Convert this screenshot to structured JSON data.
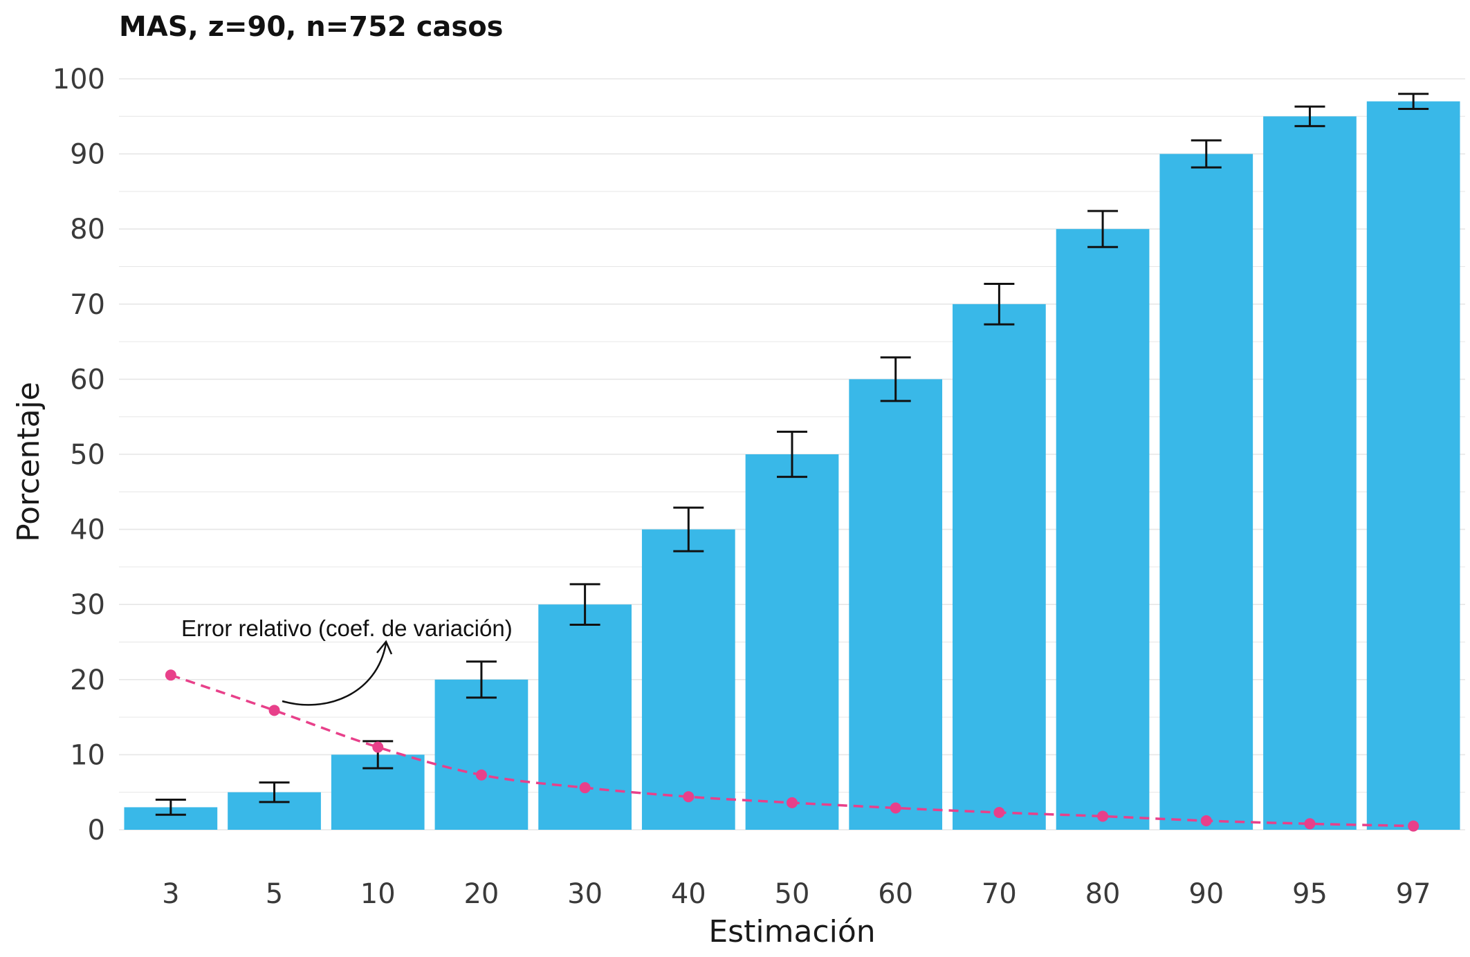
{
  "chart_data": {
    "type": "bar",
    "title": "MAS, z=90, n=752 casos",
    "xlabel": "Estimación",
    "ylabel": "Porcentaje",
    "categories": [
      "3",
      "5",
      "10",
      "20",
      "30",
      "40",
      "50",
      "60",
      "70",
      "80",
      "90",
      "95",
      "97"
    ],
    "series": [
      {
        "type": "bar",
        "values": [
          3,
          5,
          10,
          20,
          30,
          40,
          50,
          60,
          70,
          80,
          90,
          95,
          97
        ],
        "error_low": [
          2.0,
          3.7,
          8.2,
          17.6,
          27.3,
          37.1,
          47.0,
          57.1,
          67.3,
          77.6,
          88.2,
          93.7,
          96.0
        ],
        "error_high": [
          4.0,
          6.3,
          11.8,
          22.4,
          32.7,
          42.9,
          53.0,
          62.9,
          72.7,
          82.4,
          91.8,
          96.3,
          98.0
        ],
        "color": "#39b8e8"
      },
      {
        "type": "line",
        "style": "dashed",
        "values": [
          20.6,
          15.9,
          11.0,
          7.3,
          5.6,
          4.4,
          3.6,
          2.9,
          2.3,
          1.8,
          1.2,
          0.8,
          0.5
        ],
        "color": "#e8408a"
      }
    ],
    "annotations": [
      {
        "text": "Error relativo (coef. de variación)"
      }
    ],
    "yticks": [
      "0",
      "10",
      "20",
      "30",
      "40",
      "50",
      "60",
      "70",
      "80",
      "90",
      "100"
    ],
    "ylim": [
      0,
      100
    ],
    "grid": true,
    "legend": "none"
  },
  "colors": {
    "bar": "#39b8e8",
    "line": "#e8408a",
    "errorbar": "#111111",
    "grid": "#e6e6e6"
  }
}
